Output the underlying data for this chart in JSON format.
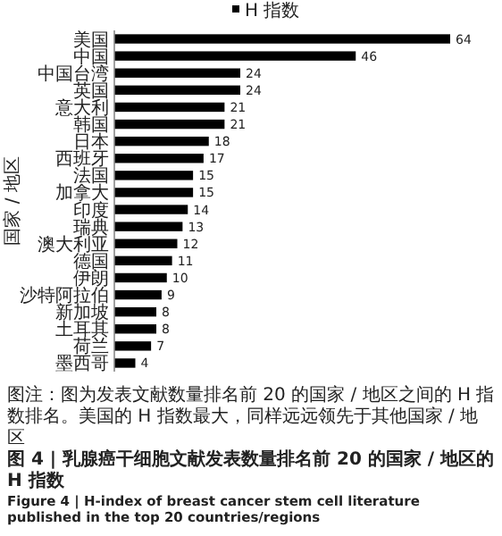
{
  "chart_data": {
    "type": "bar",
    "orientation": "horizontal",
    "ylabel": "国家 / 地区",
    "legend": "top",
    "data_labels": true,
    "categories": [
      "美国",
      "中国",
      "中国台湾",
      "英国",
      "意大利",
      "韩国",
      "日本",
      "西班牙",
      "法国",
      "加拿大",
      "印度",
      "瑞典",
      "澳大利亚",
      "德国",
      "伊朗",
      "沙特阿拉伯",
      "新加坡",
      "土耳其",
      "荷兰",
      "墨西哥"
    ],
    "series": [
      {
        "name": "H 指数",
        "color": "#000000",
        "values": [
          64,
          46,
          24,
          24,
          21,
          21,
          18,
          17,
          15,
          15,
          14,
          13,
          12,
          11,
          10,
          9,
          8,
          8,
          7,
          4
        ]
      }
    ],
    "annotations": [
      "图注：图为发表文献数量排名前 20 的国家 / 地区之间的 H 指数排名。美国的 H 指数最大，同样远远领先于其他国家 / 地区",
      "图 4 | 乳腺癌干细胞文献发表数量排名前 20 的国家 / 地区的 H 指数",
      "Figure 4 | H-index of breast cancer stem cell literature published in the top 20 countries/regions"
    ]
  }
}
